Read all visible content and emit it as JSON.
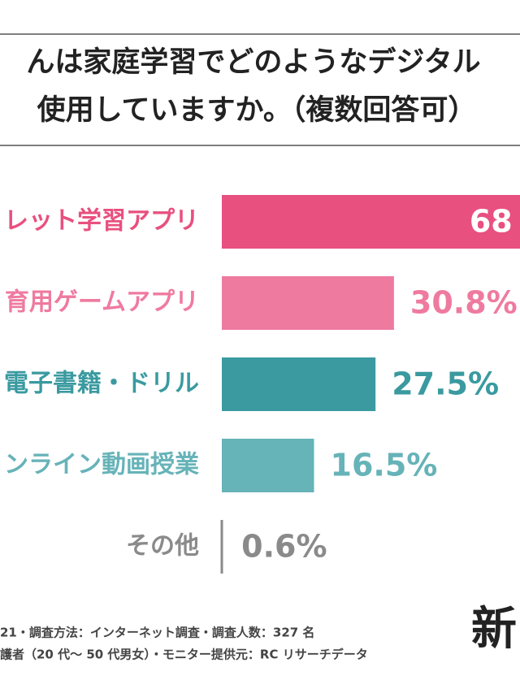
{
  "chart_data": {
    "type": "barh",
    "title_lines": [
      "んは家庭学習でどのようなデジタル",
      "使用していますか。（複数回答可）"
    ],
    "categories": [
      "レット学習アプリ",
      "育用ゲームアプリ",
      "電子書籍・ドリル",
      "ンライン動画授業",
      "その他"
    ],
    "values": [
      68,
      30.8,
      27.5,
      16.5,
      0.6
    ],
    "value_labels": [
      "68",
      "30.8%",
      "27.5%",
      "16.5%",
      "0.6%"
    ],
    "colors": [
      "#e8507f",
      "#ef7aa0",
      "#3a9aa0",
      "#66b3b8",
      "#8a8a8a"
    ],
    "footnotes": [
      "21・調査方法：インターネット調査・調査人数：327 名",
      "護者（20 代～ 50 代男女）・モニター提供元：RC リサーチデータ"
    ],
    "logo": "新"
  }
}
